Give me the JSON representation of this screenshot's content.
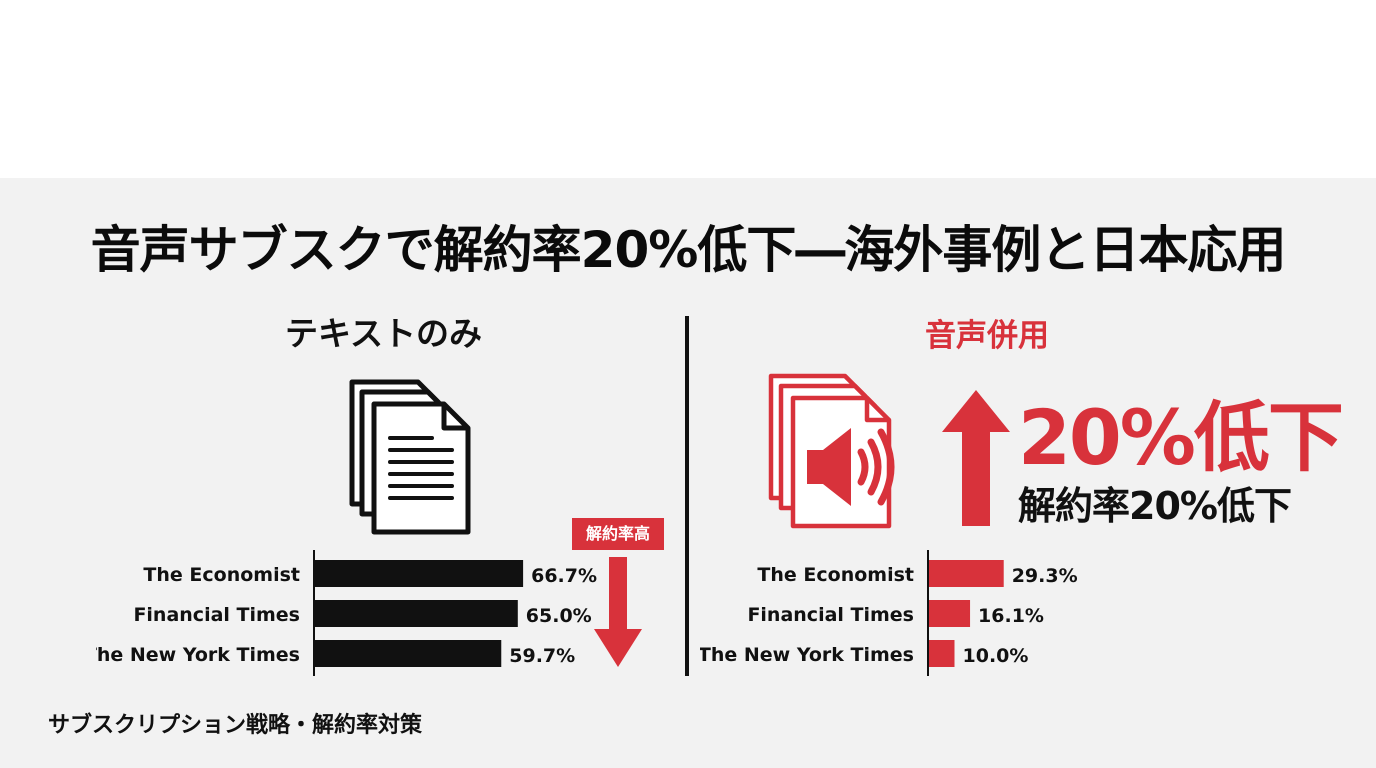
{
  "title": "音声サブスクで解約率20%低下―海外事例と日本応用",
  "left": {
    "heading": "テキストのみ",
    "badge": "解約率高"
  },
  "right": {
    "heading": "音声併用",
    "big_text": "20%低下",
    "sub_text": "解約率20%低下"
  },
  "footer": "サブスクリプション戦略・解約率対策",
  "icons": {
    "left": "document-stack-icon",
    "right": "audio-document-icon",
    "up": "arrow-up-icon",
    "down": "arrow-down-icon"
  },
  "colors": {
    "accent": "#d8323b",
    "dark": "#111111"
  },
  "chart_data": [
    {
      "type": "bar",
      "orientation": "horizontal",
      "categories": [
        "The Economist",
        "Financial Times",
        "The New York Times"
      ],
      "values": [
        66.7,
        65.0,
        59.7
      ],
      "value_labels": [
        "66.7%",
        "65.0%",
        "59.7%"
      ],
      "color": "#111111"
    },
    {
      "type": "bar",
      "orientation": "horizontal",
      "categories": [
        "The Economist",
        "Financial Times",
        "The New York Times"
      ],
      "values": [
        29.3,
        16.1,
        10.0
      ],
      "value_labels": [
        "29.3%",
        "16.1%",
        "10.0%"
      ],
      "color": "#d8323b"
    }
  ]
}
